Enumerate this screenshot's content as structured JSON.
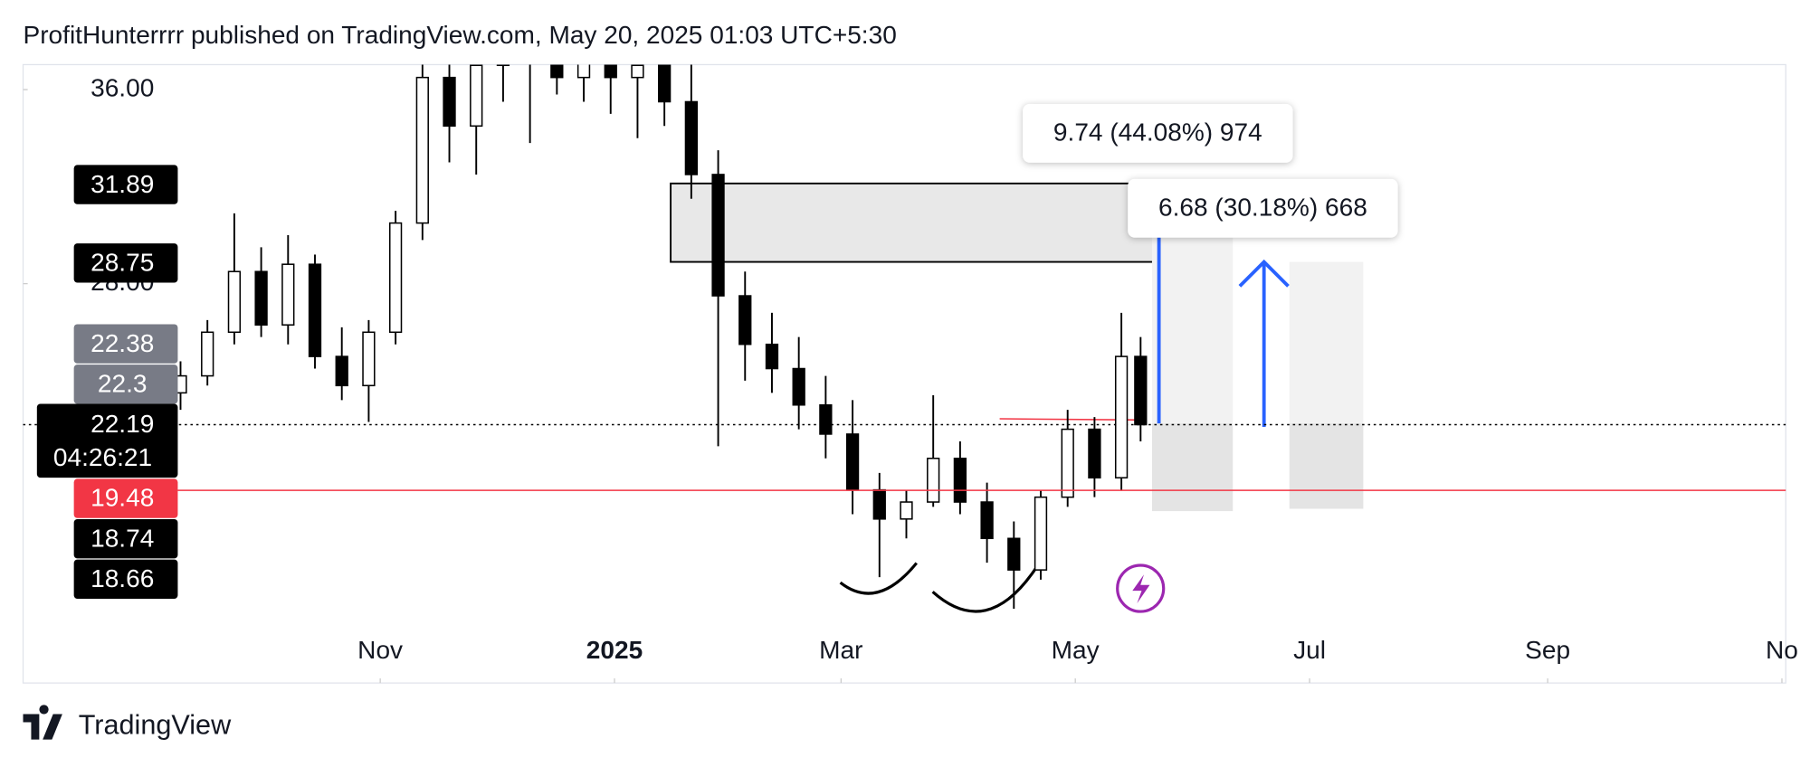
{
  "header": {
    "title": "ProfitHunterrrr published on TradingView.com, May 20, 2025 01:03 UTC+5:30"
  },
  "footer": {
    "brand": "TradingView"
  },
  "chart_data": {
    "type": "candlestick",
    "x": [
      -52,
      -45,
      -38,
      -31,
      -24,
      -17,
      -10,
      -3,
      4,
      11,
      18,
      25,
      32,
      39,
      46,
      53,
      60,
      67,
      74,
      81,
      88,
      95,
      102,
      109,
      116,
      123,
      130,
      137,
      144,
      151,
      158,
      165,
      172,
      179,
      186,
      193,
      198
    ],
    "open": [
      23.5,
      24.2,
      26.0,
      28.5,
      26.3,
      28.8,
      25.0,
      23.8,
      26.0,
      30.5,
      36.5,
      34.5,
      37.0,
      39.0,
      38.0,
      36.5,
      37.5,
      36.5,
      37.0,
      35.5,
      32.5,
      27.5,
      25.5,
      24.5,
      23.0,
      21.8,
      19.5,
      18.3,
      19.0,
      20.8,
      19.0,
      17.5,
      16.2,
      19.2,
      22.0,
      20.0,
      25.0
    ],
    "high": [
      24.8,
      26.5,
      30.9,
      29.5,
      30.0,
      29.2,
      26.2,
      26.5,
      31.0,
      37.5,
      39.5,
      38.5,
      41.0,
      40.5,
      40.0,
      39.0,
      40.0,
      38.5,
      39.0,
      37.5,
      33.5,
      28.5,
      26.8,
      25.8,
      24.2,
      23.2,
      20.2,
      19.5,
      23.4,
      21.5,
      19.8,
      18.2,
      19.5,
      22.8,
      22.5,
      26.8,
      25.8
    ],
    "low": [
      22.8,
      23.8,
      25.5,
      25.8,
      25.5,
      24.5,
      23.2,
      22.3,
      25.5,
      29.8,
      33.0,
      32.5,
      35.5,
      33.8,
      35.8,
      35.5,
      35.0,
      34.0,
      34.5,
      31.5,
      21.3,
      24.0,
      23.5,
      22.0,
      20.8,
      18.5,
      15.9,
      17.5,
      18.8,
      18.5,
      16.5,
      14.6,
      15.8,
      18.8,
      19.2,
      19.5,
      21.5
    ],
    "close": [
      24.2,
      26.0,
      28.5,
      26.3,
      28.8,
      25.0,
      23.8,
      26.0,
      30.5,
      36.5,
      34.5,
      37.0,
      39.0,
      38.0,
      36.5,
      37.5,
      36.5,
      37.0,
      35.5,
      32.5,
      27.5,
      25.5,
      24.5,
      23.0,
      21.8,
      19.5,
      18.3,
      19.0,
      20.8,
      19.0,
      17.5,
      16.2,
      19.2,
      22.0,
      20.0,
      25.0,
      22.19
    ],
    "color": "#000000",
    "xlim": [
      -93,
      366
    ],
    "xticks": [
      {
        "value": 0,
        "label": "Nov"
      },
      {
        "value": 61,
        "label": "2025"
      },
      {
        "value": 120,
        "label": "Mar"
      },
      {
        "value": 181,
        "label": "May"
      },
      {
        "value": 242,
        "label": "Jul"
      },
      {
        "value": 304,
        "label": "Sep"
      },
      {
        "value": 365,
        "label": "No"
      }
    ],
    "ylim": [
      11.54,
      37.03
    ],
    "yticks": [
      {
        "value": 36,
        "label": "36.00"
      },
      {
        "value": 28,
        "label": "28.00"
      }
    ],
    "price_badges": [
      {
        "value": 31.89,
        "color": "#000000"
      },
      {
        "value": 28.75,
        "color": "#000000"
      },
      {
        "value": 22.38,
        "color": "#787b86"
      },
      {
        "value": 22.3,
        "color": "#787b86"
      },
      {
        "value": 22.19,
        "color": "#000000"
      },
      {
        "value": 19.48,
        "color": "#f23645"
      },
      {
        "value": 18.74,
        "color": "#000000"
      },
      {
        "value": 18.66,
        "color": "#000000"
      }
    ],
    "countdown": "04:26:21",
    "annotations": [
      "9.74 (44.08%) 974",
      "6.68 (30.18%) 668"
    ]
  }
}
